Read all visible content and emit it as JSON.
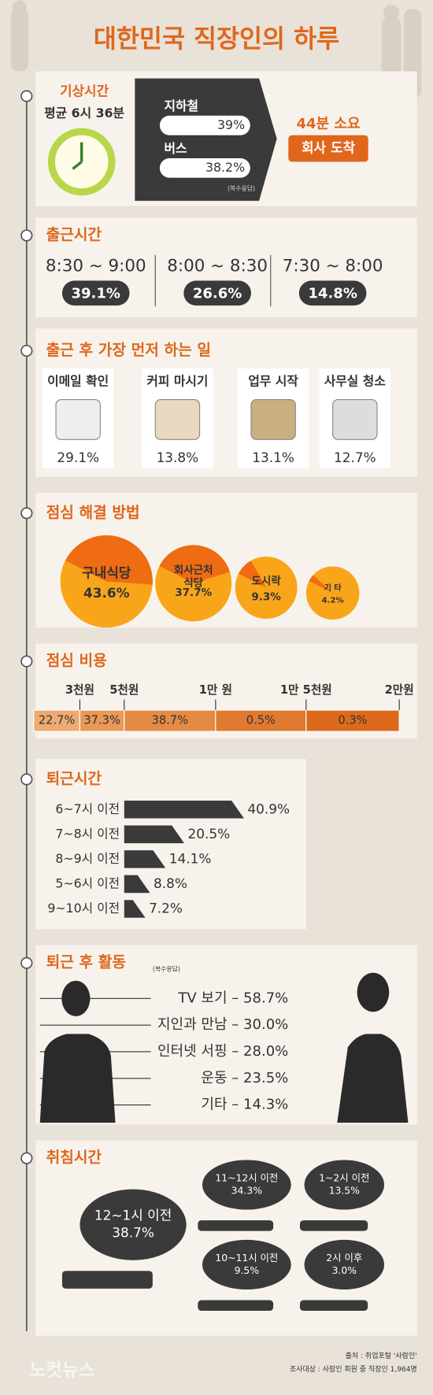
{
  "title": "대한민국 직장인의 하루",
  "wake": {
    "heading": "기상시간",
    "average": "평균 6시 36분",
    "modes": [
      {
        "label": "지하철",
        "value": "39%"
      },
      {
        "label": "버스",
        "value": "38.2%"
      }
    ],
    "note": "(복수응답)",
    "duration": "44분 소요",
    "arrival": "회사 도착"
  },
  "commute": {
    "heading": "출근시간",
    "items": [
      {
        "time": "8:30 ~ 9:00",
        "value": "39.1%"
      },
      {
        "time": "8:00 ~ 8:30",
        "value": "26.6%"
      },
      {
        "time": "7:30 ~ 8:00",
        "value": "14.8%"
      }
    ]
  },
  "first_task": {
    "heading": "출근 후 가장 먼저 하는 일",
    "items": [
      {
        "label": "이메일 확인",
        "value": "29.1%"
      },
      {
        "label": "커피 마시기",
        "value": "13.8%"
      },
      {
        "label": "업무 시작",
        "value": "13.1%"
      },
      {
        "label": "사무실 청소",
        "value": "12.7%"
      }
    ]
  },
  "lunch": {
    "heading": "점심 해결 방법",
    "labels": [
      [
        "구내식당"
      ],
      [
        "회사근처",
        "식당"
      ],
      [
        "도시락"
      ],
      [
        "기 타"
      ]
    ],
    "values": [
      43.6,
      37.7,
      9.3,
      4.2
    ],
    "value_labels": [
      "43.6%",
      "37.7%",
      "9.3%",
      "4.2%"
    ]
  },
  "lunch_cost": {
    "heading": "점심 비용",
    "ticks": [
      "3천원",
      "5천원",
      "1만 원",
      "1만 5천원",
      "2만원"
    ],
    "values": [
      "22.7%",
      "37.3%",
      "38.7%",
      "0.5%",
      "0.3%"
    ]
  },
  "leave": {
    "heading": "퇴근시간",
    "categories": [
      "6~7시 이전",
      "7~8시 이전",
      "8~9시 이전",
      "5~6시 이전",
      "9~10시 이전"
    ],
    "values": [
      40.9,
      20.5,
      14.1,
      8.8,
      7.2
    ],
    "value_labels": [
      "40.9%",
      "20.5%",
      "14.1%",
      "8.8%",
      "7.2%"
    ]
  },
  "after_work": {
    "heading": "퇴근 후 활동",
    "note": "(복수응답)",
    "items": [
      {
        "label": "TV 보기",
        "value": "58.7%"
      },
      {
        "label": "지인과 만남",
        "value": "30.0%"
      },
      {
        "label": "인터넷 서핑",
        "value": "28.0%"
      },
      {
        "label": "운동",
        "value": "23.5%"
      },
      {
        "label": "기타",
        "value": "14.3%"
      }
    ]
  },
  "sleep": {
    "heading": "취침시간",
    "items": [
      {
        "time": "12~1시 이전",
        "value": "38.7%"
      },
      {
        "time": "11~12시 이전",
        "value": "34.3%"
      },
      {
        "time": "1~2시 이전",
        "value": "13.5%"
      },
      {
        "time": "10~11시 이전",
        "value": "9.5%"
      },
      {
        "time": "2시 이후",
        "value": "3.0%"
      }
    ]
  },
  "footer": {
    "source": "출처 : 취업포털 '사람인'",
    "survey": "조사대상 : 사람인 회원 중 직장인 1,964명",
    "watermark": "노컷뉴스"
  }
}
